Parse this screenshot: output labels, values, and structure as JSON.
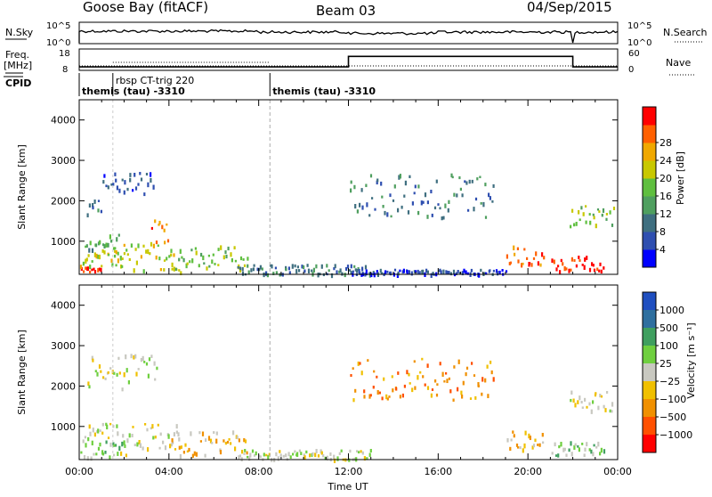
{
  "header": {
    "station": "Goose Bay (fitACF)",
    "beam": "Beam 03",
    "date": "04/Sep/2015"
  },
  "summary": {
    "nsky_label": "N.Sky",
    "nsearch_label": "N.Search",
    "nsky_ticks": [
      "10^5",
      "10^0"
    ],
    "freq_label": "Freq.",
    "freq_unit": "[MHz]",
    "freq_ticks": [
      "18",
      "8"
    ],
    "nave_label": "Nave",
    "nave_ticks": [
      "60",
      "0"
    ],
    "cpid_label": "CPID",
    "cpid_segments": [
      {
        "label": "themis (tau) -3310",
        "start": 0.0,
        "end": 8.5
      },
      {
        "label": "rbsp CT-trig 220",
        "start": 1.5,
        "end": 8.5
      },
      {
        "label": "themis (tau) -3310",
        "start": 8.5,
        "end": 24.0
      }
    ],
    "nave_steps": [
      {
        "start": 0.0,
        "end": 12.0,
        "value": 8
      },
      {
        "start": 12.0,
        "end": 22.0,
        "value": 40
      },
      {
        "start": 22.0,
        "end": 24.0,
        "value": 8
      }
    ]
  },
  "chart_data": [
    {
      "type": "heatmap",
      "name": "power",
      "ylabel": "Slant Range [km]",
      "xlabel": "Time UT",
      "x_ticks": [
        "00:00",
        "04:00",
        "08:00",
        "12:00",
        "16:00",
        "20:00",
        "00:00"
      ],
      "xlim": [
        0,
        24
      ],
      "ylim": [
        180,
        4500
      ],
      "y_ticks": [
        1000,
        2000,
        3000,
        4000
      ],
      "colorbar": {
        "label": "Power [dB]",
        "ticks": [
          "4",
          "8",
          "12",
          "16",
          "20",
          "24",
          "28"
        ],
        "colors": [
          "#0000ff",
          "#2f4fb0",
          "#3f6f80",
          "#4f9f5f",
          "#5fbf3f",
          "#c8c800",
          "#f0a800",
          "#ff6000",
          "#ff0000"
        ]
      },
      "features": [
        {
          "t0": 0.0,
          "t1": 1.0,
          "r0": 250,
          "r1": 400,
          "level": 8
        },
        {
          "t0": 0.0,
          "t1": 2.0,
          "r0": 400,
          "r1": 800,
          "level": 5
        },
        {
          "t0": 0.2,
          "t1": 1.8,
          "r0": 800,
          "r1": 1200,
          "level": 3
        },
        {
          "t0": 0.3,
          "t1": 1.0,
          "r0": 1600,
          "r1": 2050,
          "level": 2
        },
        {
          "t0": 1.0,
          "t1": 3.3,
          "r0": 2200,
          "r1": 2750,
          "level": 1
        },
        {
          "t0": 1.5,
          "t1": 4.5,
          "r0": 250,
          "r1": 1000,
          "level": 5
        },
        {
          "t0": 3.2,
          "t1": 4.0,
          "r0": 1000,
          "r1": 1600,
          "level": 7
        },
        {
          "t0": 4.0,
          "t1": 7.5,
          "r0": 300,
          "r1": 900,
          "level": 4
        },
        {
          "t0": 7.0,
          "t1": 13.0,
          "r0": 200,
          "r1": 450,
          "level": 2
        },
        {
          "t0": 12.0,
          "t1": 19.0,
          "r0": 200,
          "r1": 320,
          "level": 1
        },
        {
          "t0": 12.0,
          "t1": 18.5,
          "r0": 1600,
          "r1": 2700,
          "level": 2
        },
        {
          "t0": 19.0,
          "t1": 20.7,
          "r0": 450,
          "r1": 900,
          "level": 7
        },
        {
          "t0": 21.0,
          "t1": 23.4,
          "r0": 280,
          "r1": 650,
          "level": 8
        },
        {
          "t0": 21.8,
          "t1": 23.8,
          "r0": 1400,
          "r1": 1900,
          "level": 4
        }
      ]
    },
    {
      "type": "heatmap",
      "name": "velocity",
      "ylabel": "Slant Range [km]",
      "xlabel": "Time UT",
      "x_ticks": [
        "00:00",
        "04:00",
        "08:00",
        "12:00",
        "16:00",
        "20:00",
        "00:00"
      ],
      "xlim": [
        0,
        24
      ],
      "ylim": [
        180,
        4500
      ],
      "y_ticks": [
        1000,
        2000,
        3000,
        4000
      ],
      "colorbar": {
        "label": "Velocity [m s⁻¹]",
        "ticks": [
          "1000",
          "500",
          "100",
          "25",
          "−25",
          "−100",
          "−500",
          "−1000"
        ],
        "colors": [
          "#1f4fc0",
          "#2f6f9f",
          "#3f9f5f",
          "#6fcf3f",
          "#c8c8c0",
          "#f0c000",
          "#f09000",
          "#ff5000",
          "#ff0000"
        ]
      },
      "features": [
        {
          "t0": 0.0,
          "t1": 2.0,
          "r0": 250,
          "r1": 700,
          "level": 3
        },
        {
          "t0": 0.2,
          "t1": 1.5,
          "r0": 700,
          "r1": 1100,
          "level": 4
        },
        {
          "t0": 0.3,
          "t1": 3.5,
          "r0": 1900,
          "r1": 2800,
          "level": 4
        },
        {
          "t0": 1.5,
          "t1": 4.5,
          "r0": 300,
          "r1": 1100,
          "level": 4
        },
        {
          "t0": 4.0,
          "t1": 7.5,
          "r0": 300,
          "r1": 900,
          "level": 5
        },
        {
          "t0": 7.0,
          "t1": 13.0,
          "r0": 200,
          "r1": 450,
          "level": 4
        },
        {
          "t0": 12.0,
          "t1": 18.5,
          "r0": 1600,
          "r1": 2700,
          "level": 6
        },
        {
          "t0": 19.0,
          "t1": 20.7,
          "r0": 450,
          "r1": 900,
          "level": 5
        },
        {
          "t0": 21.0,
          "t1": 23.4,
          "r0": 280,
          "r1": 650,
          "level": 3
        },
        {
          "t0": 21.8,
          "t1": 23.8,
          "r0": 1400,
          "r1": 1900,
          "level": 4
        }
      ]
    }
  ]
}
